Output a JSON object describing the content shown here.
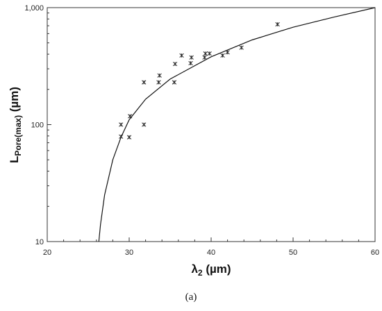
{
  "chart_data": {
    "type": "scatter",
    "xlabel_main": "λ",
    "xlabel_sub": "2",
    "xlabel_unit": " (µm)",
    "ylabel_main": "L",
    "ylabel_sub": "Pore(max)",
    "ylabel_unit": " (µm)",
    "xlim": [
      20,
      60
    ],
    "ylim": [
      10,
      1000
    ],
    "yscale": "log",
    "x_ticks": [
      "20",
      "30",
      "40",
      "50",
      "60"
    ],
    "y_ticks": [
      "10",
      "100",
      "1,000"
    ],
    "series": [
      {
        "marker": "asterisk",
        "points": [
          [
            29.0,
            79
          ],
          [
            29.0,
            100
          ],
          [
            30.0,
            78
          ],
          [
            30.1,
            118
          ],
          [
            31.8,
            100
          ],
          [
            31.8,
            230
          ],
          [
            33.6,
            230
          ],
          [
            33.7,
            263
          ],
          [
            35.5,
            230
          ],
          [
            35.6,
            330
          ],
          [
            36.4,
            390
          ],
          [
            37.5,
            335
          ],
          [
            37.6,
            375
          ],
          [
            39.2,
            375
          ],
          [
            39.3,
            405
          ],
          [
            39.8,
            405
          ],
          [
            41.4,
            390
          ],
          [
            42.0,
            415
          ],
          [
            43.7,
            455
          ],
          [
            48.1,
            720
          ]
        ]
      },
      {
        "line": "fit",
        "points": [
          [
            26.3,
            10
          ],
          [
            26.5,
            14
          ],
          [
            27.0,
            25
          ],
          [
            28.0,
            50
          ],
          [
            29.0,
            78
          ],
          [
            30.0,
            110
          ],
          [
            32.0,
            165
          ],
          [
            35.0,
            245
          ],
          [
            40.0,
            380
          ],
          [
            45.0,
            530
          ],
          [
            50.0,
            680
          ],
          [
            55.0,
            830
          ],
          [
            60.0,
            1000
          ]
        ]
      }
    ]
  },
  "caption": "(a)"
}
